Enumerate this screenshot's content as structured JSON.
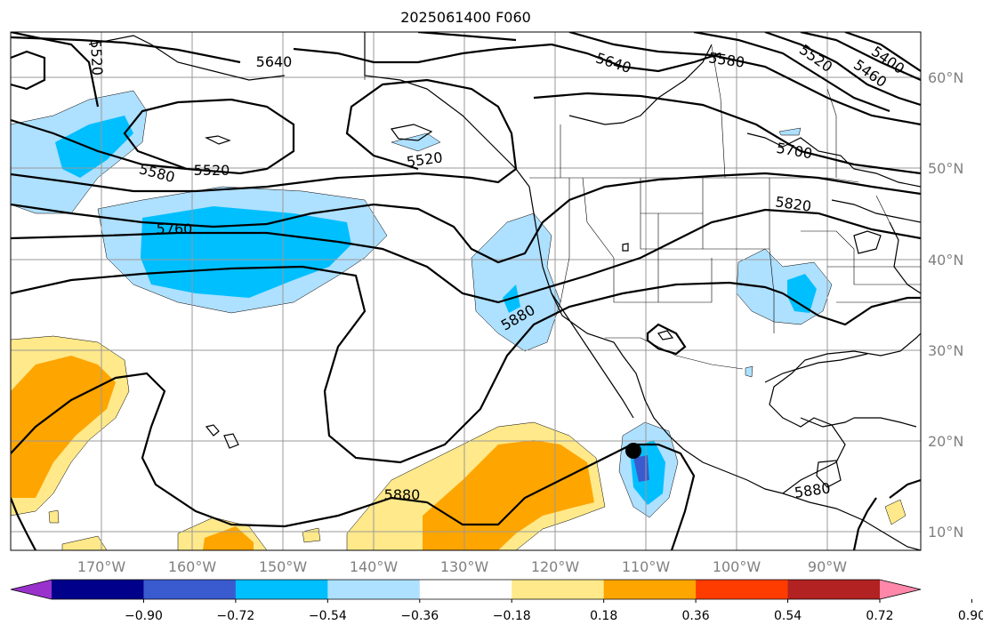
{
  "title": "2025061400 F060",
  "latitude_labels": [
    "60°N",
    "50°N",
    "40°N",
    "30°N",
    "20°N",
    "10°N"
  ],
  "longitude_labels": [
    "170°W",
    "160°W",
    "150°W",
    "140°W",
    "130°W",
    "120°W",
    "110°W",
    "100°W",
    "90°W"
  ],
  "contour_labels": [
    "5520",
    "5640",
    "5520",
    "5580",
    "5520",
    "5760",
    "5640",
    "5580",
    "5520",
    "5460",
    "5400",
    "5700",
    "5820",
    "5880",
    "5880",
    "5880"
  ],
  "colorbar": {
    "tick_labels": [
      "−0.90",
      "−0.72",
      "−0.54",
      "−0.36",
      "−0.18",
      "0.18",
      "0.36",
      "0.54",
      "0.72",
      "0.90"
    ],
    "colors": [
      "#9932cc",
      "#00008b",
      "#3a5bcf",
      "#00bfff",
      "#aee0ff",
      "#ffffff",
      "#ffe98a",
      "#ffa500",
      "#ff3c00",
      "#b22222",
      "#ff88aa"
    ]
  },
  "colors": {
    "gridline": "#999999",
    "coastline": "#000000",
    "contour": "#000000",
    "storm_marker": "#000000"
  }
}
